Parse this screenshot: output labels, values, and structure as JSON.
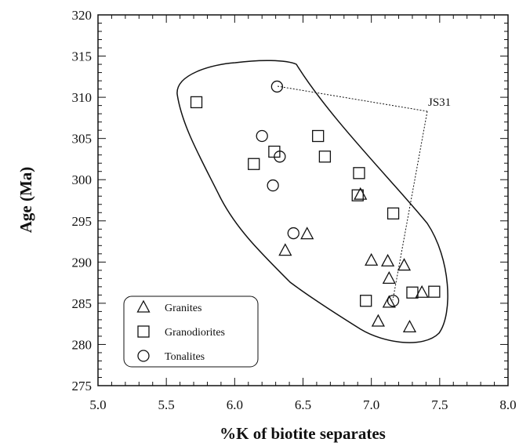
{
  "chart_data": {
    "type": "scatter",
    "x_label": "%K of biotite separates",
    "y_label": "Age (Ma)",
    "xlim": [
      5.0,
      8.0
    ],
    "ylim": [
      275,
      320
    ],
    "xticks": [
      {
        "value": 5,
        "label": "5.0"
      },
      5.5,
      {
        "value": 6,
        "label": "6.0"
      },
      6.5,
      {
        "value": 7,
        "label": "7.0"
      },
      7.5,
      {
        "value": 8,
        "label": "8.0"
      }
    ],
    "yticks": [
      275,
      280,
      285,
      290,
      295,
      300,
      305,
      310,
      315,
      320
    ],
    "legend": "lower left",
    "annotation": "JS31",
    "series": [
      {
        "name": "Granites",
        "marker": "triangle",
        "color": "#111111",
        "x": [
          6.92,
          6.53,
          6.37,
          7.0,
          7.12,
          7.13,
          7.24,
          7.13,
          7.05,
          7.28,
          7.37
        ],
        "values": [
          298.2,
          293.4,
          291.4,
          290.2,
          290.1,
          288.0,
          289.6,
          285.1,
          282.8,
          282.1,
          286.3
        ]
      },
      {
        "name": "Granodiorites",
        "marker": "square",
        "color": "#111111",
        "x": [
          5.72,
          6.14,
          6.29,
          6.61,
          6.66,
          6.91,
          6.9,
          7.16,
          6.96,
          7.3,
          7.46
        ],
        "values": [
          309.4,
          301.9,
          303.4,
          305.3,
          302.8,
          300.8,
          298.1,
          295.9,
          285.3,
          286.3,
          286.4
        ]
      },
      {
        "name": "Tonalites",
        "marker": "circle",
        "color": "#111111",
        "x": [
          6.31,
          6.2,
          6.33,
          6.28,
          6.43,
          7.16
        ],
        "values": [
          311.3,
          305.3,
          302.8,
          299.3,
          293.5,
          285.3
        ]
      }
    ]
  }
}
